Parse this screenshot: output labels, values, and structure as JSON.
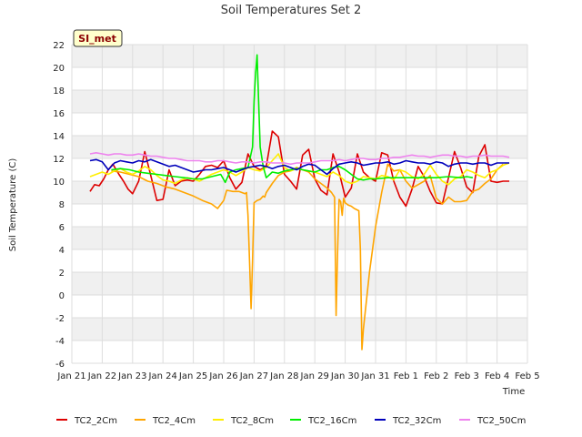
{
  "chart_data": {
    "type": "line",
    "title": "Soil Temperatures Set 2",
    "xlabel": "Time",
    "ylabel": "Soil Temperature (C)",
    "badge": "SI_met",
    "ylim": [
      -6,
      22
    ],
    "yticks": [
      -6,
      -4,
      -2,
      0,
      2,
      4,
      6,
      8,
      10,
      12,
      14,
      16,
      18,
      20,
      22
    ],
    "xlim": [
      0,
      15
    ],
    "xtick_positions": [
      0,
      1,
      2,
      3,
      4,
      5,
      6,
      7,
      8,
      9,
      10,
      11,
      12,
      13,
      14,
      15
    ],
    "xtick_labels": [
      "Jan 21",
      "Jan 22",
      "Jan 23",
      "Jan 24",
      "Jan 25",
      "Jan 26",
      "Jan 27",
      "Jan 28",
      "Jan 29",
      "Jan 30",
      "Jan 31",
      "Feb 1",
      "Feb 2",
      "Feb 3",
      "Feb 4",
      "Feb 5"
    ],
    "grid": true,
    "legend_position": "bottom",
    "series": [
      {
        "name": "TC2_2Cm",
        "color": "#dd0000",
        "x": [
          0.6,
          0.75,
          0.9,
          1.05,
          1.2,
          1.35,
          1.55,
          1.7,
          1.85,
          2.0,
          2.2,
          2.4,
          2.6,
          2.8,
          3.0,
          3.2,
          3.4,
          3.6,
          3.8,
          4.0,
          4.2,
          4.4,
          4.6,
          4.8,
          5.0,
          5.2,
          5.4,
          5.6,
          5.8,
          6.0,
          6.2,
          6.4,
          6.6,
          6.8,
          7.0,
          7.2,
          7.4,
          7.6,
          7.8,
          8.0,
          8.2,
          8.4,
          8.6,
          8.8,
          9.0,
          9.2,
          9.4,
          9.6,
          9.8,
          10.0,
          10.2,
          10.4,
          10.6,
          10.8,
          11.0,
          11.2,
          11.4,
          11.6,
          11.8,
          12.0,
          12.2,
          12.4,
          12.6,
          12.8,
          13.0,
          13.2,
          13.4,
          13.6,
          13.8,
          14.0,
          14.2,
          14.4
        ],
        "y": [
          9.1,
          9.7,
          9.6,
          10.2,
          11.0,
          11.5,
          10.6,
          10.0,
          9.3,
          8.9,
          10.0,
          12.6,
          10.5,
          8.3,
          8.4,
          11.0,
          9.6,
          10.0,
          10.1,
          10.0,
          10.6,
          11.3,
          11.4,
          11.2,
          11.8,
          10.3,
          9.3,
          9.9,
          12.4,
          11.3,
          11.0,
          11.3,
          14.4,
          13.9,
          10.6,
          10.0,
          9.3,
          12.3,
          12.8,
          10.2,
          9.2,
          8.8,
          12.4,
          10.8,
          8.6,
          9.4,
          12.4,
          10.8,
          10.3,
          10.0,
          12.5,
          12.3,
          10.0,
          8.6,
          7.8,
          9.3,
          11.3,
          10.4,
          9.1,
          8.1,
          8.0,
          10.3,
          12.6,
          11.2,
          9.5,
          9.0,
          12.2,
          13.2,
          10.0,
          9.9,
          10.0,
          10.0
        ]
      },
      {
        "name": "TC2_4Cm",
        "color": "#ffa500",
        "x": [
          1.3,
          1.6,
          1.9,
          2.2,
          2.5,
          2.8,
          3.1,
          3.4,
          3.7,
          4.0,
          4.3,
          4.6,
          4.8,
          5.0,
          5.1,
          5.3,
          5.5,
          5.7,
          5.75,
          5.8,
          5.85,
          5.9,
          5.95,
          6.0,
          6.1,
          6.2,
          6.3,
          6.35,
          6.4,
          6.6,
          6.8,
          7.0,
          7.2,
          7.4,
          7.6,
          7.8,
          8.0,
          8.2,
          8.4,
          8.55,
          8.6,
          8.65,
          8.7,
          8.75,
          8.8,
          8.85,
          8.9,
          8.95,
          9.0,
          9.05,
          9.1,
          9.2,
          9.3,
          9.45,
          9.5,
          9.55,
          9.6,
          9.8,
          10.0,
          10.2,
          10.4,
          10.6,
          10.8,
          11.0,
          11.2,
          11.4,
          11.6,
          11.8,
          12.0,
          12.2,
          12.4,
          12.6,
          12.8,
          13.0,
          13.2,
          13.4,
          13.6,
          13.8,
          14.0,
          14.2
        ],
        "y": [
          10.9,
          10.8,
          10.6,
          10.4,
          10.0,
          9.8,
          9.5,
          9.3,
          9.0,
          8.7,
          8.3,
          8.0,
          7.6,
          8.3,
          9.2,
          9.1,
          9.1,
          8.9,
          9.0,
          7.0,
          3.0,
          -1.2,
          3.0,
          8.1,
          8.3,
          8.4,
          8.7,
          8.6,
          9.0,
          9.8,
          10.5,
          10.8,
          10.9,
          11.2,
          11.0,
          10.8,
          10.2,
          9.8,
          9.4,
          9.0,
          8.8,
          8.6,
          -1.8,
          4.0,
          8.4,
          8.2,
          7.0,
          8.5,
          8.1,
          8.0,
          7.9,
          7.8,
          7.6,
          7.4,
          4.0,
          -4.8,
          -3.0,
          2.0,
          6.0,
          9.0,
          11.5,
          10.9,
          11.0,
          10.0,
          9.4,
          9.7,
          10.0,
          10.5,
          8.5,
          8.0,
          8.6,
          8.2,
          8.2,
          8.3,
          9.1,
          9.3,
          9.8,
          10.2,
          11.0,
          11.5
        ]
      },
      {
        "name": "TC2_8Cm",
        "color": "#ffee00",
        "x": [
          0.6,
          0.8,
          1.0,
          1.2,
          1.4,
          1.6,
          1.8,
          2.0,
          2.2,
          2.4,
          2.6,
          2.8,
          3.0,
          3.2,
          3.4,
          3.6,
          3.8,
          4.0,
          4.2,
          4.4,
          4.6,
          4.8,
          5.0,
          5.2,
          5.4,
          5.6,
          5.8,
          6.0,
          6.2,
          6.4,
          6.6,
          6.8,
          7.0,
          7.2,
          7.4,
          7.6,
          7.8,
          8.0,
          8.2,
          8.4,
          8.6,
          8.8,
          9.0,
          9.2,
          9.4,
          9.6,
          9.8,
          10.0,
          10.2,
          10.4,
          10.6,
          10.8,
          11.0,
          11.2,
          11.4,
          11.6,
          11.8,
          12.0,
          12.2,
          12.4,
          12.6,
          12.8,
          13.0,
          13.2,
          13.4,
          13.6,
          13.8,
          14.0,
          14.2,
          14.4
        ],
        "y": [
          10.4,
          10.6,
          10.8,
          10.6,
          10.9,
          11.1,
          10.8,
          10.6,
          10.9,
          11.3,
          11.0,
          10.5,
          10.1,
          10.0,
          9.8,
          10.1,
          10.3,
          10.2,
          10.0,
          10.3,
          10.6,
          10.8,
          11.0,
          10.8,
          10.5,
          10.8,
          11.2,
          11.0,
          10.9,
          11.2,
          11.8,
          12.4,
          11.2,
          10.9,
          11.1,
          11.0,
          10.9,
          10.8,
          10.6,
          10.4,
          10.8,
          10.5,
          10.0,
          9.8,
          10.0,
          10.4,
          10.3,
          10.2,
          10.5,
          10.4,
          10.1,
          11.0,
          10.8,
          10.4,
          10.2,
          10.6,
          11.4,
          10.6,
          10.0,
          9.7,
          10.2,
          10.4,
          11.0,
          10.8,
          10.5,
          10.3,
          10.8,
          11.0,
          11.4,
          11.6
        ]
      },
      {
        "name": "TC2_16Cm",
        "color": "#00ee00",
        "x": [
          1.3,
          1.6,
          1.9,
          2.2,
          2.5,
          2.8,
          3.1,
          3.4,
          3.7,
          4.0,
          4.3,
          4.6,
          4.9,
          5.05,
          5.2,
          5.4,
          5.6,
          5.8,
          5.95,
          6.0,
          6.05,
          6.1,
          6.15,
          6.2,
          6.3,
          6.4,
          6.6,
          6.8,
          7.0,
          7.2,
          7.4,
          7.6,
          7.8,
          8.0,
          8.2,
          8.4,
          8.6,
          8.8,
          9.0,
          9.2,
          9.4,
          9.6,
          9.8,
          10.0,
          10.4,
          10.8,
          11.2,
          11.6,
          12.0,
          12.4,
          12.8,
          13.0,
          13.2
        ],
        "y": [
          11.0,
          11.1,
          11.0,
          10.8,
          10.7,
          10.6,
          10.5,
          10.4,
          10.3,
          10.2,
          10.2,
          10.4,
          10.6,
          9.9,
          10.8,
          11.0,
          11.1,
          11.2,
          13.0,
          17.0,
          19.5,
          21.1,
          17.0,
          13.0,
          11.3,
          10.3,
          10.8,
          10.7,
          10.9,
          11.0,
          11.1,
          11.0,
          10.9,
          10.8,
          11.0,
          11.0,
          11.2,
          11.3,
          11.0,
          10.6,
          10.2,
          10.1,
          10.2,
          10.2,
          10.3,
          10.3,
          10.3,
          10.3,
          10.3,
          10.4,
          10.3,
          10.4,
          10.3
        ]
      },
      {
        "name": "TC2_32Cm",
        "color": "#0000bb",
        "x": [
          0.6,
          0.8,
          1.0,
          1.2,
          1.4,
          1.6,
          1.8,
          2.0,
          2.2,
          2.4,
          2.6,
          2.8,
          3.0,
          3.2,
          3.4,
          3.6,
          3.8,
          4.0,
          4.2,
          4.4,
          4.6,
          4.8,
          5.0,
          5.2,
          5.4,
          5.6,
          5.8,
          6.0,
          6.2,
          6.4,
          6.6,
          6.8,
          7.0,
          7.2,
          7.4,
          7.6,
          7.8,
          8.0,
          8.2,
          8.4,
          8.6,
          8.8,
          9.0,
          9.2,
          9.4,
          9.6,
          9.8,
          10.0,
          10.2,
          10.4,
          10.6,
          10.8,
          11.0,
          11.2,
          11.4,
          11.6,
          11.8,
          12.0,
          12.2,
          12.4,
          12.6,
          12.8,
          13.0,
          13.2,
          13.4,
          13.6,
          13.8,
          14.0,
          14.2,
          14.4
        ],
        "y": [
          11.8,
          11.9,
          11.7,
          11.0,
          11.6,
          11.8,
          11.7,
          11.6,
          11.8,
          11.7,
          11.9,
          11.7,
          11.5,
          11.3,
          11.4,
          11.2,
          11.0,
          10.8,
          10.9,
          11.0,
          11.0,
          11.1,
          11.2,
          11.0,
          10.8,
          11.0,
          11.2,
          11.3,
          11.4,
          11.3,
          11.1,
          11.3,
          11.4,
          11.2,
          11.0,
          11.3,
          11.5,
          11.4,
          11.0,
          10.6,
          11.1,
          11.5,
          11.6,
          11.7,
          11.6,
          11.4,
          11.5,
          11.6,
          11.6,
          11.7,
          11.5,
          11.6,
          11.8,
          11.7,
          11.6,
          11.6,
          11.5,
          11.7,
          11.6,
          11.3,
          11.5,
          11.6,
          11.6,
          11.5,
          11.6,
          11.6,
          11.4,
          11.6,
          11.6,
          11.6
        ]
      },
      {
        "name": "TC2_50Cm",
        "color": "#ee82ee",
        "x": [
          0.6,
          0.8,
          1.0,
          1.2,
          1.4,
          1.6,
          1.8,
          2.0,
          2.2,
          2.4,
          2.6,
          2.8,
          3.0,
          3.2,
          3.4,
          3.6,
          3.8,
          4.0,
          4.2,
          4.4,
          4.6,
          4.8,
          5.0,
          5.2,
          5.4,
          5.6,
          5.8,
          6.0,
          6.2,
          6.4,
          6.6,
          6.8,
          7.0,
          7.2,
          7.4,
          7.6,
          7.8,
          8.0,
          8.2,
          8.4,
          8.6,
          8.8,
          9.0,
          9.2,
          9.4,
          9.6,
          9.8,
          10.0,
          10.2,
          10.4,
          10.6,
          10.8,
          11.0,
          11.2,
          11.4,
          11.6,
          11.8,
          12.0,
          12.2,
          12.4,
          12.6,
          12.8,
          13.0,
          13.2,
          13.4,
          13.6,
          13.8,
          14.0,
          14.2,
          14.4
        ],
        "y": [
          12.4,
          12.5,
          12.4,
          12.3,
          12.4,
          12.4,
          12.3,
          12.3,
          12.4,
          12.3,
          12.2,
          12.2,
          12.1,
          12.0,
          12.0,
          11.9,
          11.8,
          11.8,
          11.8,
          11.7,
          11.7,
          11.8,
          11.8,
          11.7,
          11.6,
          11.7,
          11.7,
          11.6,
          11.7,
          11.7,
          11.6,
          11.6,
          11.6,
          11.5,
          11.6,
          11.6,
          11.6,
          11.7,
          11.8,
          11.8,
          11.8,
          11.9,
          11.8,
          11.9,
          12.0,
          12.0,
          11.9,
          11.9,
          12.0,
          12.0,
          12.1,
          12.1,
          12.2,
          12.3,
          12.2,
          12.2,
          12.1,
          12.2,
          12.3,
          12.3,
          12.2,
          12.2,
          12.1,
          12.2,
          12.2,
          12.3,
          12.2,
          12.2,
          12.2,
          12.1
        ]
      }
    ]
  }
}
